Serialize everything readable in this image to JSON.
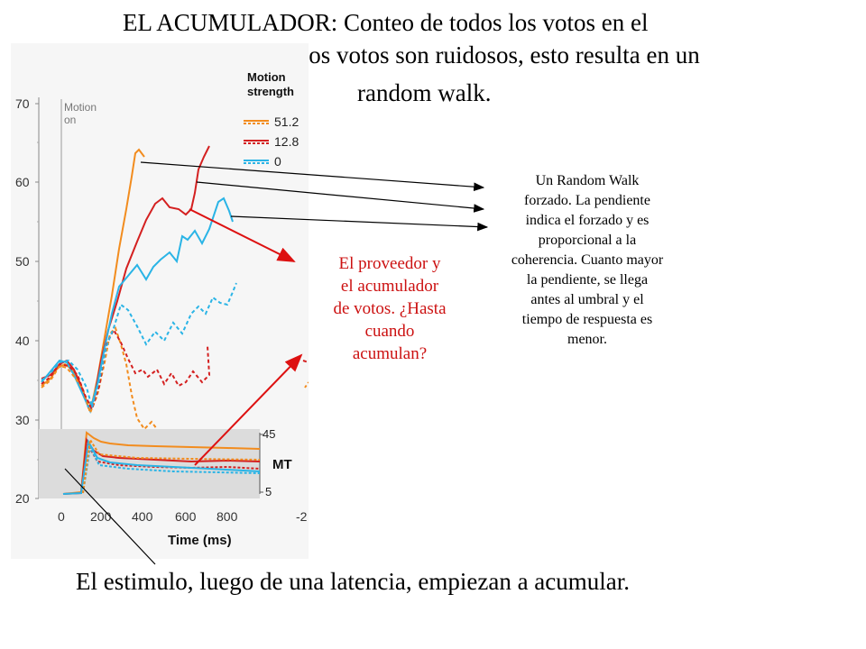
{
  "title": {
    "line1": "EL ACUMULADOR: Conteo de todos los votos en el",
    "line2": "...os votos son ruidosos, esto resulta en un",
    "line3": "random walk."
  },
  "figure": {
    "y_ticks": [
      "70",
      "60",
      "50",
      "40",
      "30",
      "20"
    ],
    "x_ticks": [
      "0",
      "200",
      "400",
      "600",
      "800",
      "-2"
    ],
    "xlabel": "Time (ms)",
    "motion_on": [
      "Motion",
      "on"
    ],
    "legend_title": [
      "Motion",
      "strength"
    ],
    "legend": [
      {
        "label": "51.2",
        "color": "#f28c1e"
      },
      {
        "label": "12.8",
        "color": "#d42020"
      },
      {
        "label": "0",
        "color": "#2ab4e6"
      }
    ],
    "inset": {
      "label": "MT",
      "top": "45",
      "bottom": "5"
    }
  },
  "annotations": {
    "red_lines": [
      "El proveedor y",
      "el acumulador",
      "de votos. ¿Hasta",
      "cuando",
      "acumulan?"
    ],
    "black_lines": [
      "Un Random Walk",
      "forzado. La pendiente",
      "indica el forzado y es",
      "proporcional a la",
      "coherencia. Cuanto mayor",
      "la pendiente, se llega",
      "antes al umbral y el",
      "tiempo de respuesta es",
      "menor."
    ]
  },
  "bottom_caption": "El estimulo, luego de una latencia, empiezan a acumular.",
  "colors": {
    "orange": "#f28c1e",
    "red": "#d42020",
    "cyan": "#2ab4e6",
    "annotation_red": "#cc1111"
  }
}
